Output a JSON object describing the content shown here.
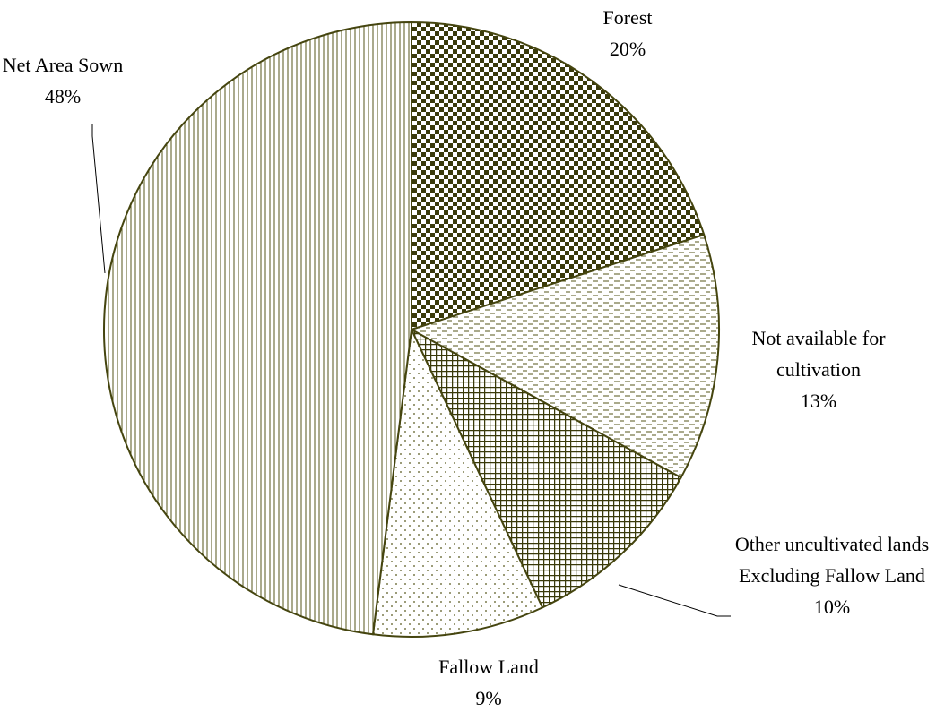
{
  "chart_data": {
    "type": "pie",
    "categories": [
      "Forest",
      "Not available for cultivation",
      "Other uncultivated lands Excluding Fallow Land",
      "Fallow Land",
      "Net Area Sown"
    ],
    "values": [
      20,
      13,
      10,
      9,
      48
    ],
    "value_labels": [
      "20%",
      "13%",
      "10%",
      "9%",
      "48%"
    ],
    "color": "#45450f"
  }
}
